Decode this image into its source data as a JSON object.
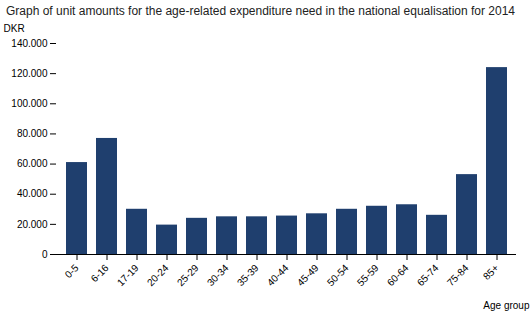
{
  "chart_data": {
    "type": "bar",
    "title": "Graph of unit amounts for the age-related expenditure need in the national equalisation for 2014",
    "xlabel": "Age group",
    "ylabel": "DKR",
    "categories": [
      "0-5",
      "6-16",
      "17-19",
      "20-24",
      "25-29",
      "30-34",
      "35-39",
      "40-44",
      "45-49",
      "50-54",
      "55-59",
      "60-64",
      "65-74",
      "75-84",
      "85+"
    ],
    "values": [
      61000,
      77000,
      30000,
      19500,
      24000,
      25000,
      25000,
      25500,
      27000,
      30000,
      32000,
      33000,
      26000,
      53000,
      124000
    ],
    "color": "#1f3f6e",
    "ylim": [
      0,
      140000
    ],
    "yticks": [
      0,
      {
        "value": 20000,
        "label": "20.000"
      },
      {
        "value": 40000,
        "label": "40.000"
      },
      {
        "value": 60000,
        "label": "60.000"
      },
      {
        "value": 80000,
        "label": "80.000"
      },
      {
        "value": 100000,
        "label": "100.000"
      },
      {
        "value": 120000,
        "label": "120.000"
      },
      {
        "value": 140000,
        "label": "140.000"
      }
    ],
    "grid": false
  }
}
